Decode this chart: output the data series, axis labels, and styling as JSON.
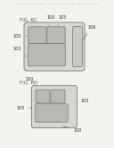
{
  "bg_color": "#f2f2ee",
  "header_text": "Patent Application Publication    May 13, 2014   Sheet 4 of 8    US 2014/0138647 A1",
  "fig6c_label": "FIG. 6C",
  "fig6d_label": "FIG. 6D",
  "label_100": "100",
  "label_103": "103",
  "label_105": "105",
  "label_106": "106",
  "outer_face": "#d6d6d2",
  "outer_edge": "#888888",
  "inner_face": "#b8b8b4",
  "inner_edge": "#777777",
  "strip_face": "#c8c8c4",
  "text_color": "#333333",
  "line_color": "#666666"
}
